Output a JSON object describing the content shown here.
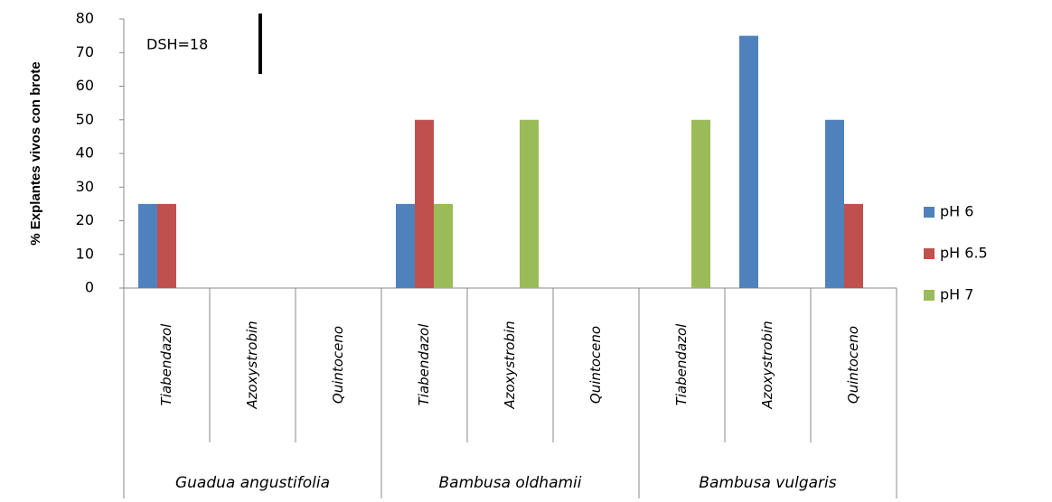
{
  "chart_data": {
    "type": "bar",
    "y_label": "% Explantes vivos con brote",
    "annotation": {
      "text": "DSH=18",
      "value": 18
    },
    "categories": [
      "Tiabendazol",
      "Azoxystrobin",
      "Quintoceno",
      "Tiabendazol",
      "Azoxystrobin",
      "Quintoceno",
      "Tiabendazol",
      "Azoxystrobin",
      "Quintoceno"
    ],
    "groups": [
      "Guadua angustifolia",
      "Bambusa oldhamii",
      "Bambusa vulgaris"
    ],
    "series": [
      {
        "name": "pH 6",
        "color": "#4f81bd",
        "values": [
          25,
          0,
          0,
          25,
          0,
          0,
          0,
          75,
          50
        ]
      },
      {
        "name": "pH 6.5",
        "color": "#c0504d",
        "values": [
          25,
          0,
          0,
          50,
          0,
          0,
          0,
          0,
          25
        ]
      },
      {
        "name": "pH 7",
        "color": "#9bbb59",
        "values": [
          0,
          0,
          0,
          25,
          50,
          0,
          50,
          0,
          0
        ]
      }
    ],
    "ylim": [
      0,
      80
    ],
    "yticks": [
      0,
      10,
      20,
      30,
      40,
      50,
      60,
      70,
      80
    ],
    "grid": false,
    "legend": "right"
  }
}
